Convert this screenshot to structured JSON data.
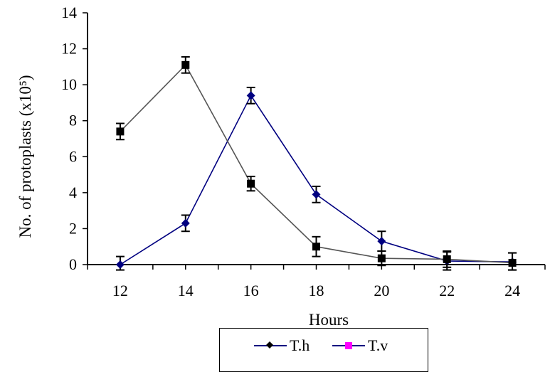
{
  "chart_data": {
    "type": "line",
    "xlabel": "Hours",
    "ylabel": "No. of protoplasts (x10⁵)",
    "x": [
      12,
      14,
      16,
      18,
      20,
      22,
      24
    ],
    "xlim": [
      11,
      25
    ],
    "ylim": [
      0,
      14
    ],
    "x_ticks": [
      12,
      14,
      16,
      18,
      20,
      22,
      24
    ],
    "y_ticks": [
      0,
      2,
      4,
      6,
      8,
      10,
      12,
      14
    ],
    "grid": false,
    "legend_position": "bottom",
    "series": [
      {
        "name": "T.h",
        "values": [
          0.0,
          2.3,
          9.4,
          3.9,
          1.3,
          0.2,
          0.15
        ],
        "errors": [
          0.45,
          0.45,
          0.45,
          0.45,
          0.55,
          0.5,
          0.5
        ],
        "color": "#000080",
        "marker": "diamond"
      },
      {
        "name": "T.v",
        "values": [
          7.4,
          11.1,
          4.5,
          1.0,
          0.35,
          0.3,
          0.1
        ],
        "errors": [
          0.45,
          0.45,
          0.4,
          0.55,
          0.4,
          0.45,
          0.55
        ],
        "color": "#000000",
        "marker": "square"
      }
    ],
    "legend": [
      {
        "label": "T.h",
        "line_color": "#000080",
        "marker_color": "#000000",
        "marker": "diamond"
      },
      {
        "label": "T.v",
        "line_color": "#000080",
        "marker_color": "#ff00ff",
        "marker": "square"
      }
    ]
  }
}
